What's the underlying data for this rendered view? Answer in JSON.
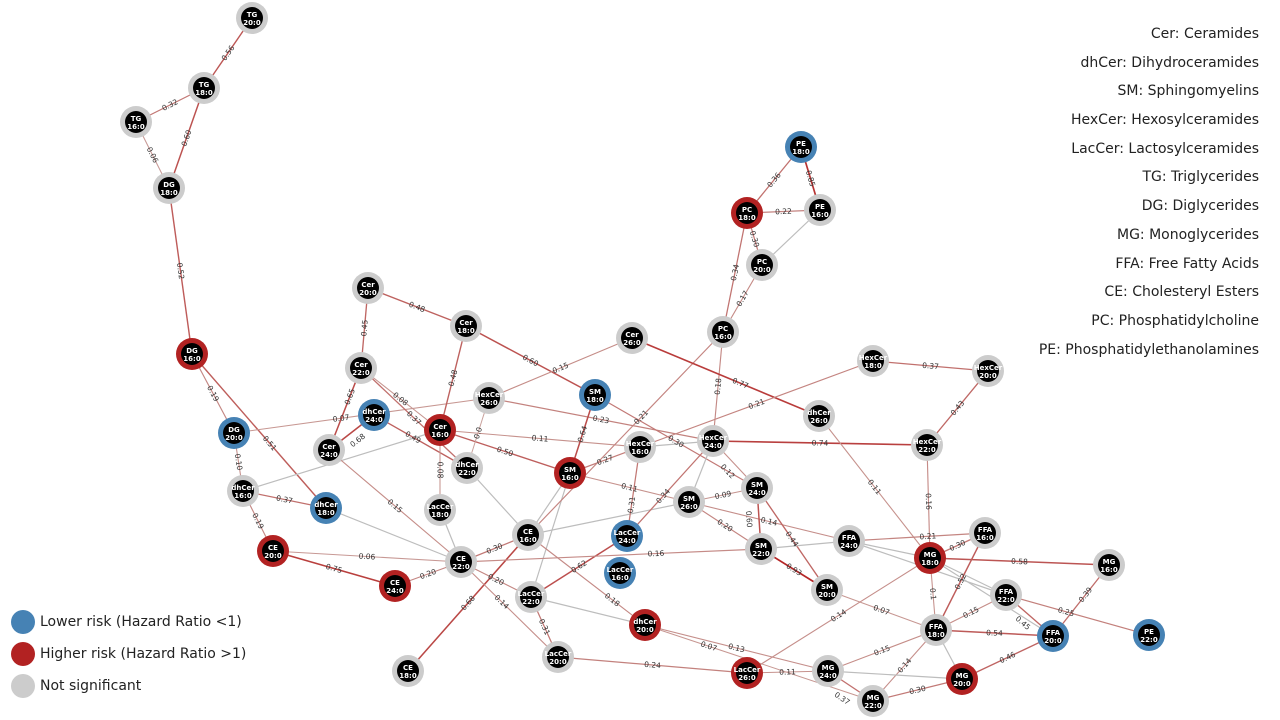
{
  "colors": {
    "lower": "#4682b4",
    "higher": "#b22222",
    "ns": "#cccccc",
    "core": "#000000"
  },
  "abbreviations": [
    "Cer: Ceramides",
    "dhCer: Dihydroceramides",
    "SM: Sphingomyelins",
    "HexCer: Hexosylceramides",
    "LacCer: Lactosylceramides",
    "TG: Triglycerides",
    "DG: Diglycerides",
    "MG: Monoglycerides",
    "FFA: Free Fatty Acids",
    "CE: Cholesteryl Esters",
    "PC: Phosphatidylcholine",
    "PE: Phosphatidylethanolamines"
  ],
  "legend": [
    {
      "label": "Lower risk (Hazard Ratio <1)",
      "risk": "lower"
    },
    {
      "label": "Higher risk (Hazard Ratio >1)",
      "risk": "higher"
    },
    {
      "label": "Not significant",
      "risk": "ns"
    }
  ],
  "nodes": [
    {
      "id": "TG 20:0",
      "risk": "ns"
    },
    {
      "id": "TG 18:0",
      "risk": "ns"
    },
    {
      "id": "TG 16:0",
      "risk": "ns"
    },
    {
      "id": "DG 18:0",
      "risk": "ns"
    },
    {
      "id": "DG 16:0",
      "risk": "higher"
    },
    {
      "id": "DG 20:0",
      "risk": "lower"
    },
    {
      "id": "dhCer 16:0",
      "risk": "ns"
    },
    {
      "id": "CE 20:0",
      "risk": "higher"
    },
    {
      "id": "dhCer 18:0",
      "risk": "lower"
    },
    {
      "id": "CE 24:0",
      "risk": "higher"
    },
    {
      "id": "CE 18:0",
      "risk": "ns"
    },
    {
      "id": "Cer 20:0",
      "risk": "ns"
    },
    {
      "id": "Cer 18:0",
      "risk": "ns"
    },
    {
      "id": "Cer 22:0",
      "risk": "ns"
    },
    {
      "id": "dhCer 24:0",
      "risk": "lower"
    },
    {
      "id": "Cer 24:0",
      "risk": "ns"
    },
    {
      "id": "Cer 16:0",
      "risk": "higher"
    },
    {
      "id": "HexCer 26:0",
      "risk": "ns"
    },
    {
      "id": "dhCer 22:0",
      "risk": "ns"
    },
    {
      "id": "LacCer 18:0",
      "risk": "ns"
    },
    {
      "id": "CE 22:0",
      "risk": "ns"
    },
    {
      "id": "CE 16:0",
      "risk": "ns"
    },
    {
      "id": "LacCer 22:0",
      "risk": "ns"
    },
    {
      "id": "LacCer 20:0",
      "risk": "ns"
    },
    {
      "id": "SM 18:0",
      "risk": "lower"
    },
    {
      "id": "SM 16:0",
      "risk": "higher"
    },
    {
      "id": "Cer 26:0",
      "risk": "ns"
    },
    {
      "id": "HexCer 16:0",
      "risk": "ns"
    },
    {
      "id": "PC 16:0",
      "risk": "ns"
    },
    {
      "id": "HexCer 24:0",
      "risk": "ns"
    },
    {
      "id": "SM 24:0",
      "risk": "ns"
    },
    {
      "id": "SM 26:0",
      "risk": "ns"
    },
    {
      "id": "LacCer 24:0",
      "risk": "lower"
    },
    {
      "id": "LacCer 16:0",
      "risk": "lower"
    },
    {
      "id": "SM 22:0",
      "risk": "ns"
    },
    {
      "id": "SM 20:0",
      "risk": "ns"
    },
    {
      "id": "dhCer 20:0",
      "risk": "higher"
    },
    {
      "id": "LacCer 26:0",
      "risk": "higher"
    },
    {
      "id": "MG 24:0",
      "risk": "ns"
    },
    {
      "id": "MG 22:0",
      "risk": "ns"
    },
    {
      "id": "MG 20:0",
      "risk": "higher"
    },
    {
      "id": "FFA 18:0",
      "risk": "ns"
    },
    {
      "id": "FFA 24:0",
      "risk": "ns"
    },
    {
      "id": "MG 18:0",
      "risk": "higher"
    },
    {
      "id": "FFA 16:0",
      "risk": "ns"
    },
    {
      "id": "FFA 22:0",
      "risk": "ns"
    },
    {
      "id": "FFA 20:0",
      "risk": "lower"
    },
    {
      "id": "MG 16:0",
      "risk": "ns"
    },
    {
      "id": "PE 22:0",
      "risk": "lower"
    },
    {
      "id": "dhCer 26:0",
      "risk": "ns"
    },
    {
      "id": "HexCer 18:0",
      "risk": "ns"
    },
    {
      "id": "HexCer 20:0",
      "risk": "ns"
    },
    {
      "id": "HexCer 22:0",
      "risk": "ns"
    },
    {
      "id": "PE 18:0",
      "risk": "lower"
    },
    {
      "id": "PC 18:0",
      "risk": "higher"
    },
    {
      "id": "PE 16:0",
      "risk": "ns"
    },
    {
      "id": "PC 20:0",
      "risk": "ns"
    }
  ],
  "edges": [
    [
      "TG 20:0",
      "TG 18:0",
      "0.56"
    ],
    [
      "TG 18:0",
      "TG 16:0",
      "0.32"
    ],
    [
      "TG 18:0",
      "DG 18:0",
      "0.60"
    ],
    [
      "TG 16:0",
      "DG 18:0",
      "0.06"
    ],
    [
      "DG 18:0",
      "DG 16:0",
      "0.52"
    ],
    [
      "DG 16:0",
      "DG 20:0",
      "0.19"
    ],
    [
      "DG 16:0",
      "dhCer 18:0",
      "0.51"
    ],
    [
      "DG 20:0",
      "dhCer 16:0",
      "0.10"
    ],
    [
      "DG 20:0",
      "HexCer 26:0",
      "0.07"
    ],
    [
      "dhCer 16:0",
      "CE 20:0",
      "0.19"
    ],
    [
      "dhCer 16:0",
      "dhCer 18:0",
      "0.37"
    ],
    [
      "dhCer 16:0",
      "Cer 16:0",
      ""
    ],
    [
      "CE 20:0",
      "CE 24:0",
      "0.75"
    ],
    [
      "CE 20:0",
      "CE 22:0",
      "0.06"
    ],
    [
      "CE 24:0",
      "CE 22:0",
      "0.20"
    ],
    [
      "LacCer 24:0",
      "LacCer 22:0",
      "0.62"
    ],
    [
      "CE 18:0",
      "CE 16:0",
      "0.68"
    ],
    [
      "Cer 20:0",
      "Cer 18:0",
      "0.48"
    ],
    [
      "Cer 20:0",
      "Cer 22:0",
      "0.45"
    ],
    [
      "Cer 18:0",
      "SM 18:0",
      "0.60"
    ],
    [
      "Cer 18:0",
      "Cer 16:0",
      "0.48"
    ],
    [
      "Cer 22:0",
      "Cer 24:0",
      "0.65"
    ],
    [
      "Cer 22:0",
      "Cer 16:0",
      "0.08"
    ],
    [
      "Cer 22:0",
      "dhCer 22:0",
      "0.37"
    ],
    [
      "Cer 24:0",
      "dhCer 24:0",
      "0.68"
    ],
    [
      "Cer 24:0",
      "CE 22:0",
      "0.15"
    ],
    [
      "dhCer 24:0",
      "dhCer 22:0",
      "0.49"
    ],
    [
      "dhCer 18:0",
      "CE 22:0",
      ""
    ],
    [
      "Cer 16:0",
      "SM 16:0",
      "0.50"
    ],
    [
      "Cer 16:0",
      "LacCer 18:0",
      "0.08"
    ],
    [
      "Cer 16:0",
      "HexCer 16:0",
      "0.11"
    ],
    [
      "HexCer 26:0",
      "dhCer 22:0",
      "0.0"
    ],
    [
      "HexCer 26:0",
      "Cer 26:0",
      "0.15"
    ],
    [
      "HexCer 26:0",
      "HexCer 24:0",
      "0.23"
    ],
    [
      "SM 18:0",
      "SM 16:0",
      "0.64"
    ],
    [
      "SM 18:0",
      "SM 24:0",
      "0.30"
    ],
    [
      "SM 16:0",
      "HexCer 16:0",
      "0.27"
    ],
    [
      "SM 16:0",
      "SM 26:0",
      "0.11"
    ],
    [
      "SM 16:0",
      "LacCer 22:0",
      ""
    ],
    [
      "dhCer 22:0",
      "CE 16:0",
      ""
    ],
    [
      "LacCer 18:0",
      "CE 22:0",
      ""
    ],
    [
      "CE 22:0",
      "CE 16:0",
      "0.30"
    ],
    [
      "CE 22:0",
      "LacCer 20:0",
      "0.14"
    ],
    [
      "CE 22:0",
      "LacCer 22:0",
      "0.20"
    ],
    [
      "CE 22:0",
      "SM 22:0",
      "0.16"
    ],
    [
      "CE 16:0",
      "SM 16:0",
      ""
    ],
    [
      "CE 16:0",
      "dhCer 20:0",
      "0.18"
    ],
    [
      "CE 16:0",
      "SM 26:0",
      ""
    ],
    [
      "LacCer 22:0",
      "LacCer 20:0",
      "0.31"
    ],
    [
      "LacCer 22:0",
      "dhCer 20:0",
      ""
    ],
    [
      "LacCer 20:0",
      "LacCer 26:0",
      "0.24"
    ],
    [
      "PC 16:0",
      "CE 16:0",
      "0.21"
    ],
    [
      "PC 16:0",
      "HexCer 24:0",
      "0.18"
    ],
    [
      "PC 16:0",
      "PC 20:0",
      "0.17"
    ],
    [
      "PC 16:0",
      "PC 18:0",
      "0.34"
    ],
    [
      "PC 18:0",
      "PE 18:0",
      "0.36"
    ],
    [
      "PC 18:0",
      "PE 16:0",
      "0.22"
    ],
    [
      "PC 18:0",
      "PC 20:0",
      "0.30"
    ],
    [
      "PE 18:0",
      "PE 16:0",
      "0.85"
    ],
    [
      "PE 16:0",
      "PC 20:0",
      ""
    ],
    [
      "Cer 26:0",
      "dhCer 26:0",
      "0.77"
    ],
    [
      "HexCer 16:0",
      "HexCer 24:0",
      ""
    ],
    [
      "HexCer 16:0",
      "LacCer 24:0",
      "0.31"
    ],
    [
      "HexCer 24:0",
      "LacCer 24:0",
      "0.34"
    ],
    [
      "HexCer 24:0",
      "HexCer 22:0",
      "0.74"
    ],
    [
      "HexCer 24:0",
      "SM 24:0",
      "0.12"
    ],
    [
      "HexCer 24:0",
      "SM 26:0",
      ""
    ],
    [
      "HexCer 16:0",
      "HexCer 18:0",
      "0.21"
    ],
    [
      "HexCer 18:0",
      "HexCer 20:0",
      "0.37"
    ],
    [
      "HexCer 20:0",
      "HexCer 22:0",
      "0.43"
    ],
    [
      "HexCer 22:0",
      "MG 18:0",
      "0.16"
    ],
    [
      "dhCer 26:0",
      "MG 18:0",
      "0.11"
    ],
    [
      "SM 26:0",
      "SM 24:0",
      "0.09"
    ],
    [
      "SM 26:0",
      "SM 22:0",
      "0.20"
    ],
    [
      "SM 26:0",
      "FFA 24:0",
      "0.14"
    ],
    [
      "SM 24:0",
      "SM 22:0",
      "0.60"
    ],
    [
      "SM 24:0",
      "SM 20:0",
      "0.44"
    ],
    [
      "SM 22:0",
      "SM 20:0",
      "0.93"
    ],
    [
      "SM 22:0",
      "FFA 24:0",
      ""
    ],
    [
      "SM 20:0",
      "FFA 18:0",
      "0.07"
    ],
    [
      "FFA 24:0",
      "FFA 16:0",
      "0.21"
    ],
    [
      "FFA 24:0",
      "MG 18:0",
      ""
    ],
    [
      "FFA 24:0",
      "FFA 22:0",
      ""
    ],
    [
      "MG 18:0",
      "FFA 16:0",
      "0.30"
    ],
    [
      "MG 18:0",
      "MG 16:0",
      "0.58"
    ],
    [
      "MG 18:0",
      "FFA 22:0",
      ""
    ],
    [
      "MG 18:0",
      "FFA 20:0",
      ""
    ],
    [
      "MG 18:0",
      "LacCer 26:0",
      "0.14"
    ],
    [
      "MG 18:0",
      "FFA 18:0",
      "0.1"
    ],
    [
      "FFA 16:0",
      "FFA 18:0",
      "0.52"
    ],
    [
      "FFA 22:0",
      "FFA 18:0",
      "0.15"
    ],
    [
      "FFA 22:0",
      "FFA 20:0",
      "0.45"
    ],
    [
      "FFA 22:0",
      "PE 22:0",
      "0.25"
    ],
    [
      "MG 16:0",
      "FFA 20:0",
      "0.39"
    ],
    [
      "FFA 18:0",
      "FFA 20:0",
      "0.54"
    ],
    [
      "FFA 18:0",
      "MG 24:0",
      "0.15"
    ],
    [
      "FFA 18:0",
      "MG 22:0",
      "0.14"
    ],
    [
      "FFA 18:0",
      "MG 20:0",
      ""
    ],
    [
      "MG 20:0",
      "FFA 20:0",
      "0.46"
    ],
    [
      "MG 20:0",
      "MG 22:0",
      "0.30"
    ],
    [
      "MG 24:0",
      "MG 22:0",
      "0.37"
    ],
    [
      "MG 24:0",
      "MG 20:0",
      ""
    ],
    [
      "MG 24:0",
      "LacCer 26:0",
      "0.11"
    ],
    [
      "dhCer 20:0",
      "MG 24:0",
      "0.13"
    ],
    [
      "dhCer 20:0",
      "MG 22:0",
      "0.07"
    ]
  ]
}
